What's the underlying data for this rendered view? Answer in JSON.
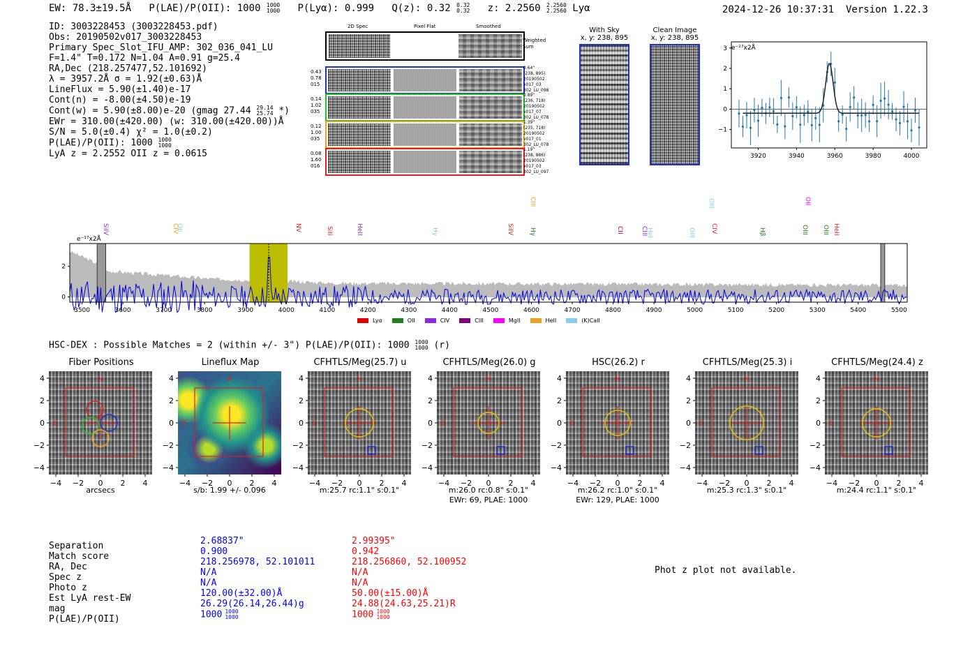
{
  "header": {
    "ew": "EW: 78.3±19.5Å",
    "plae_label": "P(LAE)/P(OII): 1000",
    "plae_sup": [
      "1000",
      "1000"
    ],
    "plya": "P(Lyα): 0.999",
    "qz_label": "Q(z): 0.32",
    "qz_sup": [
      "0.32",
      "0.32"
    ],
    "z_label": "z: 2.2560",
    "z_sup": [
      "2.2560",
      "2.2560"
    ],
    "z_line": "Lyα",
    "datetime": "2024-12-26 10:37:31",
    "version": "Version 1.22.3"
  },
  "info": {
    "id": "ID: 3003228453 (3003228453.pdf)",
    "obs": "Obs: 20190502v017_3003228453",
    "primary": "Primary Spec_Slot_IFU_AMP: 302_036_041_LU",
    "params": "F=1.4\"  T=0.172  N=1.04  A=0.91  g=25.4",
    "radec": "RA,Dec (218.257477,52.101692)",
    "lambda": "λ = 3957.2Å   σ = 1.92(±0.63)Å",
    "lineflux": "LineFlux = 5.90(±1.40)e-17",
    "contn": "Cont(n) = -8.00(±4.50)e-19",
    "contw_prefix": "Cont(w) = 5.90(±8.00)e-20 (gmag 27.44",
    "contw_sup": [
      "29.14",
      "25.74"
    ],
    "contw_suffix": "*)",
    "ewr": "EWr = 310.00(±420.00) (w: 310.00(±420.00))Å",
    "sn": "S/N = 5.0(±0.4)  χ² = 1.0(±0.2)",
    "plae_label": "P(LAE)/P(OII): 1000",
    "plae_sup": [
      "1000",
      "1000"
    ],
    "lyaz": "LyA z = 2.2552  OII z = 0.0615"
  },
  "spec2d": {
    "col_labels": [
      "2D Spec",
      "Pixel Flat",
      "Smoothed"
    ],
    "sum_label": [
      "Weighted",
      "Sum"
    ],
    "rows": [
      {
        "left": [
          "0.43",
          "0.78",
          "015"
        ],
        "right": [
          "0.64\"",
          "(238, 895)",
          "20190502",
          "v017_03",
          "302_LU_098"
        ],
        "color": "#1f2fd0"
      },
      {
        "left": [
          "0.14",
          "1.02",
          "035"
        ],
        "right": [
          "0.89\"",
          "(236, 718)",
          "20190502",
          "v017_07",
          "302_LU_078"
        ],
        "color": "#22c22a"
      },
      {
        "left": [
          "0.12",
          "1.00",
          "035"
        ],
        "right": [
          "1.39\"",
          "(235, 718)",
          "20190502",
          "v017_01",
          "302_LU_078"
        ],
        "color": "#f0a020"
      },
      {
        "left": [
          "0.08",
          "1.60",
          "016"
        ],
        "right": [
          "1.19\"",
          "(238, 886)",
          "20190502",
          "v017_03",
          "302_LU_097"
        ],
        "color": "#e02020"
      }
    ]
  },
  "with_sky": {
    "title": "With Sky",
    "coords": "x, y: 238, 895"
  },
  "clean_image": {
    "title": "Clean Image",
    "coords": "x, y: 238, 895"
  },
  "line_plot": {
    "unit": "e⁻¹⁷x2Å",
    "yticks": [
      "3",
      "2",
      "1",
      "0",
      "−1"
    ],
    "xticks": [
      "3920",
      "3940",
      "3960",
      "3980",
      "4000"
    ]
  },
  "full_spec": {
    "unit": "e⁻¹⁷x2Å",
    "yticks": [
      "2",
      "0"
    ],
    "xticks": [
      "3500",
      "3600",
      "3700",
      "3800",
      "3900",
      "4000",
      "4100",
      "4200",
      "4300",
      "4400",
      "4500",
      "4600",
      "4700",
      "4800",
      "4900",
      "5000",
      "5100",
      "5200",
      "5300",
      "5400",
      "5500"
    ],
    "line_labels": [
      {
        "text": "SiIV",
        "color": "#8a2be2"
      },
      {
        "text": "CIV",
        "color": "#f0a020"
      },
      {
        "text": "OII",
        "color": "#87ceeb"
      },
      {
        "text": "NV",
        "color": "#e02020"
      },
      {
        "text": "SiII",
        "color": "#e02020"
      },
      {
        "text": "HeII",
        "color": "#8a2be2"
      },
      {
        "text": "Hγ",
        "color": "#87ceeb"
      },
      {
        "text": "SiIV",
        "color": "#e02020"
      },
      {
        "text": "CIII",
        "color": "#f0a020"
      },
      {
        "text": "Hγ",
        "color": "#208020"
      },
      {
        "text": "CII",
        "color": "#800080"
      },
      {
        "text": "CIII",
        "color": "#8a2be2"
      },
      {
        "text": "HeI",
        "color": "#87ceeb"
      },
      {
        "text": "OIII",
        "color": "#87ceeb"
      },
      {
        "text": "OIII",
        "color": "#87ceeb"
      },
      {
        "text": "CIV",
        "color": "#e02020"
      },
      {
        "text": "Hβ",
        "color": "#208020"
      },
      {
        "text": "OII",
        "color": "#ff00ff"
      },
      {
        "text": "OIII",
        "color": "#208020"
      },
      {
        "text": "OIII",
        "color": "#208020"
      },
      {
        "text": "HeII",
        "color": "#e02020"
      }
    ],
    "legend": [
      {
        "label": "Lyα",
        "color": "#e00000"
      },
      {
        "label": "OII",
        "color": "#208020"
      },
      {
        "label": "CIV",
        "color": "#8a2be2"
      },
      {
        "label": "CIII",
        "color": "#800080"
      },
      {
        "label": "MgII",
        "color": "#ff00ff"
      },
      {
        "label": "HeII",
        "color": "#f0a020"
      },
      {
        "label": "(K)CaII",
        "color": "#87ceeb"
      }
    ]
  },
  "hsc": {
    "summary_prefix": "HSC-DEX : Possible Matches = 2 (within +/- 3\")  P(LAE)/P(OII): 1000",
    "summary_sup": [
      "1000",
      "1000"
    ],
    "summary_suffix": "(r)"
  },
  "cutouts": [
    {
      "title": "Fiber Positions",
      "caption1": "arcsecs",
      "caption2": "",
      "circle": "fibers"
    },
    {
      "title": "Lineflux Map",
      "caption1": "s/b: 1.99 +/- 0.096",
      "caption2": "",
      "circle": "map"
    },
    {
      "title": "CFHTLS/Meg(25.7) u",
      "caption1": "m:25.7 rc:1.1\"  s:0.1\"",
      "caption2": "",
      "circle": "1.1"
    },
    {
      "title": "CFHTLS/Meg(26.0) g",
      "caption1": "m:26.0 rc:0.8\"  s:0.1\"",
      "caption2": "EWr: 69, PLAE: 1000",
      "circle": "0.8"
    },
    {
      "title": "HSC(26.2) r",
      "caption1": "m:26.2 rc:1.0\"  s:0.1\"",
      "caption2": "EWr: 129, PLAE: 1000",
      "circle": "1.0"
    },
    {
      "title": "CFHTLS/Meg(25.3) i",
      "caption1": "m:25.3 rc:1.3\"  s:0.1\"",
      "caption2": "",
      "circle": "1.3"
    },
    {
      "title": "CFHTLS/Meg(24.4) z",
      "caption1": "m:24.4 rc:1.1\"  s:0.1\"",
      "caption2": "",
      "circle": "1.1"
    }
  ],
  "cutout_axes": {
    "yticks": [
      "4",
      "2",
      "0",
      "−2",
      "−4"
    ],
    "xticks": [
      "−4",
      "−2",
      "0",
      "2",
      "4"
    ],
    "north": "N",
    "east": "E"
  },
  "matches": {
    "labels": [
      "Separation",
      "Match score",
      "RA, Dec",
      "Spec z",
      "Photo z",
      "Est LyA rest-EW",
      "mag",
      "P(LAE)/P(OII)"
    ],
    "col1": [
      "2.68837\"",
      "0.900",
      "218.256978, 52.101011",
      "N/A",
      "N/A",
      "120.00(±32.00)Å",
      "26.29(26.14,26.44)g",
      "1000"
    ],
    "col2": [
      "2.99395\"",
      "0.942",
      "218.256860, 52.100952",
      "N/A",
      "N/A",
      "50.00(±15.00)Å",
      "24.88(24.63,25.21)R",
      "1000"
    ],
    "col1_sup": [
      "1000",
      "1000"
    ],
    "col2_sup": [
      "1000",
      "1000"
    ],
    "photz_note": "Phot z plot not available."
  }
}
